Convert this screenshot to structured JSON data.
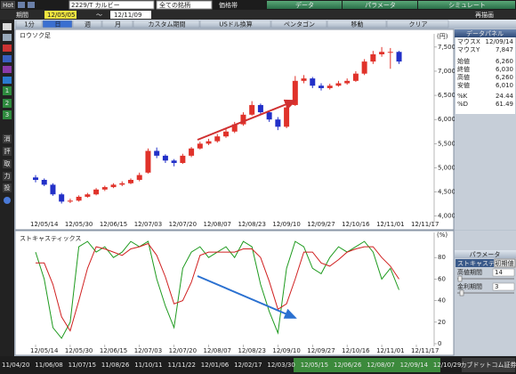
{
  "toolbar": {
    "hot": "Hot",
    "symbol": "2229/T カルビー",
    "market": "全ての銘柄",
    "price_band": "価格帯",
    "tabs": [
      "データ",
      "パラメータ",
      "シミュレート"
    ]
  },
  "period": {
    "label": "期間",
    "start": "12/05/05",
    "separator": "～",
    "end": "12/11/09",
    "redraw": "再描画"
  },
  "chart_tabs": [
    "1分",
    "日",
    "週",
    "月",
    "カスタム期間",
    "USドル換算",
    "ペンタゴン",
    "移動",
    "クリア"
  ],
  "sidebar": [
    "1",
    "2",
    "3",
    "消",
    "評",
    "取",
    "力",
    "投"
  ],
  "chart_data": [
    {
      "type": "candlestick",
      "title": "ロウソク足",
      "y_unit": "(円)",
      "categories": [
        "12/05/14",
        null,
        null,
        null,
        "12/05/30",
        null,
        null,
        null,
        "12/06/15",
        null,
        null,
        null,
        "12/07/03",
        null,
        null,
        null,
        "12/07/20",
        null,
        null,
        null,
        "12/08/07",
        null,
        null,
        null,
        "12/08/23",
        null,
        null,
        null,
        "12/09/10",
        null,
        null,
        null,
        "12/09/27",
        null,
        null,
        null,
        "12/10/16",
        null,
        null,
        null,
        "12/11/01",
        null,
        null,
        null,
        "12/11/17"
      ],
      "open": [
        4800,
        4750,
        4650,
        4450,
        4300,
        4320,
        4400,
        4450,
        4550,
        4600,
        4650,
        4680,
        4750,
        4900,
        5350,
        5250,
        5150,
        5100,
        5250,
        5400,
        5500,
        5550,
        5650,
        5750,
        5900,
        6100,
        6300,
        6150,
        6000,
        5850,
        6300,
        6800,
        6850,
        6700,
        6650,
        6700,
        6750,
        6800,
        6950,
        7200,
        7350,
        7400,
        7400,
        null,
        null
      ],
      "high": [
        4850,
        4780,
        4680,
        4480,
        4360,
        4430,
        4480,
        4580,
        4630,
        4680,
        4720,
        4780,
        4900,
        5400,
        5420,
        5280,
        5180,
        5290,
        5430,
        5540,
        5600,
        5700,
        5800,
        5950,
        6150,
        6380,
        6330,
        6180,
        6050,
        6280,
        6900,
        6920,
        6880,
        6750,
        6740,
        6800,
        6850,
        7000,
        7250,
        7420,
        7500,
        7480,
        7420,
        null,
        null
      ],
      "low": [
        4700,
        4620,
        4420,
        4260,
        4270,
        4300,
        4380,
        4430,
        4520,
        4580,
        4620,
        4660,
        4720,
        4880,
        5200,
        5100,
        5030,
        5080,
        5220,
        5380,
        5470,
        5520,
        5620,
        5720,
        5870,
        6080,
        6100,
        5950,
        5780,
        5820,
        6280,
        6750,
        6650,
        6600,
        6620,
        6680,
        6720,
        6780,
        6920,
        7150,
        7300,
        7050,
        7150,
        null,
        null
      ],
      "close": [
        4750,
        4650,
        4450,
        4300,
        4320,
        4400,
        4450,
        4550,
        4600,
        4650,
        4680,
        4750,
        4850,
        5350,
        5250,
        5150,
        5100,
        5250,
        5400,
        5500,
        5550,
        5650,
        5750,
        5900,
        6100,
        6300,
        6150,
        6000,
        5850,
        6250,
        6800,
        6850,
        6700,
        6650,
        6700,
        6750,
        6800,
        6950,
        7200,
        7350,
        7400,
        7400,
        7200,
        null,
        null
      ],
      "up_color": "#e0322a",
      "down_color": "#2230c8",
      "ylim": [
        3920,
        7700
      ],
      "yticks": [
        {
          "value": 4000,
          "label": "4,000"
        },
        {
          "value": 4500,
          "label": "4,500"
        },
        {
          "value": 5000,
          "label": "5,000"
        },
        {
          "value": 5500,
          "label": "5,500"
        },
        {
          "value": 6000,
          "label": "6,000"
        },
        {
          "value": 6500,
          "label": "6,500"
        },
        {
          "value": 7000,
          "label": "7,000"
        },
        {
          "value": 7500,
          "label": "7,500"
        }
      ]
    },
    {
      "type": "line",
      "title": "ストキャスティックス",
      "y_unit": "(%)",
      "categories": [
        "12/05/14",
        null,
        null,
        null,
        "12/05/30",
        null,
        null,
        null,
        "12/06/15",
        null,
        null,
        null,
        "12/07/03",
        null,
        null,
        null,
        "12/07/20",
        null,
        null,
        null,
        "12/08/07",
        null,
        null,
        null,
        "12/08/23",
        null,
        null,
        null,
        "12/09/10",
        null,
        null,
        null,
        "12/09/27",
        null,
        null,
        null,
        "12/10/16",
        null,
        null,
        null,
        "12/11/01",
        null,
        null,
        null,
        "12/11/17"
      ],
      "series": [
        {
          "name": "%K",
          "color": "#1e9a1e",
          "values": [
            85,
            60,
            15,
            5,
            20,
            90,
            95,
            85,
            90,
            80,
            85,
            95,
            90,
            95,
            60,
            35,
            15,
            70,
            85,
            90,
            80,
            85,
            90,
            80,
            95,
            90,
            55,
            30,
            10,
            70,
            95,
            90,
            70,
            65,
            80,
            90,
            85,
            90,
            95,
            85,
            60,
            70,
            50,
            null,
            null
          ]
        },
        {
          "name": "%D",
          "color": "#d02020",
          "values": [
            75,
            75,
            55,
            25,
            12,
            40,
            70,
            90,
            88,
            85,
            82,
            88,
            90,
            93,
            82,
            62,
            37,
            40,
            57,
            82,
            85,
            85,
            85,
            85,
            88,
            88,
            80,
            58,
            32,
            37,
            60,
            85,
            85,
            75,
            72,
            78,
            85,
            88,
            90,
            90,
            80,
            72,
            60,
            null,
            null
          ]
        }
      ],
      "ylim": [
        0,
        100
      ],
      "yticks": [
        0,
        20,
        40,
        60,
        80
      ]
    }
  ],
  "data_panel": {
    "title": "データパネル",
    "rows": [
      {
        "label": "マウスX",
        "value": "12/09/14"
      },
      {
        "label": "マウスY",
        "value": "7,847"
      },
      {
        "label": "始値",
        "value": "6,260"
      },
      {
        "label": "終値",
        "value": "6,030"
      },
      {
        "label": "高値",
        "value": "6,260"
      },
      {
        "label": "安値",
        "value": "6,010"
      }
    ],
    "series_values": [
      24.44,
      61.49
    ]
  },
  "param_panel": {
    "title": "パラメータ",
    "indicator": "ストキャスティ",
    "reset": "初期値",
    "rows": [
      {
        "label": "高値期間",
        "value": 14
      },
      {
        "label": "金利期間",
        "value": 3
      }
    ]
  },
  "timeline": {
    "labels": [
      "11/04/20",
      "11/06/08",
      "11/07/15",
      "11/08/26",
      "11/10/11",
      "11/11/22",
      "12/01/06",
      "12/02/17",
      "12/03/30",
      "12/05/15",
      "12/06/26",
      "12/08/07",
      "12/09/14",
      "12/10/29"
    ],
    "brand": "カブドットコム証券"
  }
}
